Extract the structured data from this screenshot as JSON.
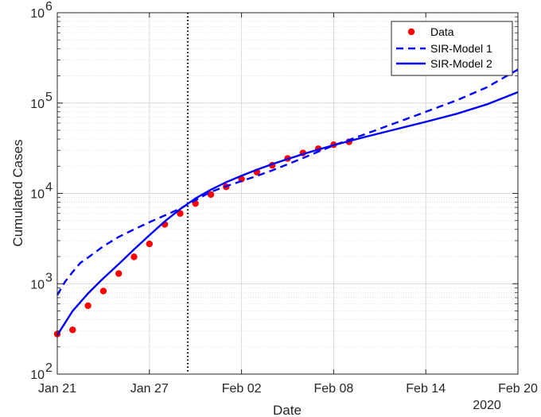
{
  "chart_data": {
    "type": "line",
    "xlabel": "Date",
    "ylabel": "Cumulated Cases",
    "x_range": [
      "2020-01-21",
      "2020-02-20"
    ],
    "ylim": [
      100,
      1000000
    ],
    "y_scale": "log",
    "grid": true,
    "legend_position": "top-right",
    "x_ticks": [
      {
        "date": "2020-01-21",
        "label": "Jan 21"
      },
      {
        "date": "2020-01-27",
        "label": "Jan 27"
      },
      {
        "date": "2020-02-02",
        "label": "Feb 02"
      },
      {
        "date": "2020-02-08",
        "label": "Feb 08"
      },
      {
        "date": "2020-02-14",
        "label": "Feb 14"
      },
      {
        "date": "2020-02-20",
        "label": "Feb 20"
      }
    ],
    "x_year_label": "2020",
    "y_ticks": [
      {
        "value": 100,
        "base": "10",
        "exp": "2"
      },
      {
        "value": 1000,
        "base": "10",
        "exp": "3"
      },
      {
        "value": 10000,
        "base": "10",
        "exp": "4"
      },
      {
        "value": 100000,
        "base": "10",
        "exp": "5"
      },
      {
        "value": 1000000,
        "base": "10",
        "exp": "6"
      }
    ],
    "vertical_line": {
      "date": "2020-01-29 12:00",
      "style": "dotted"
    },
    "series": [
      {
        "name": "Data",
        "style": "markers",
        "color": "#ff0000",
        "points": [
          [
            "2020-01-21",
            278
          ],
          [
            "2020-01-22",
            309
          ],
          [
            "2020-01-23",
            571
          ],
          [
            "2020-01-24",
            830
          ],
          [
            "2020-01-25",
            1297
          ],
          [
            "2020-01-26",
            1985
          ],
          [
            "2020-01-27",
            2761
          ],
          [
            "2020-01-28",
            4537
          ],
          [
            "2020-01-29",
            5997
          ],
          [
            "2020-01-30",
            7736
          ],
          [
            "2020-01-31",
            9720
          ],
          [
            "2020-02-01",
            11821
          ],
          [
            "2020-02-02",
            14411
          ],
          [
            "2020-02-03",
            17238
          ],
          [
            "2020-02-04",
            20471
          ],
          [
            "2020-02-05",
            24363
          ],
          [
            "2020-02-06",
            28060
          ],
          [
            "2020-02-07",
            31211
          ],
          [
            "2020-02-08",
            34598
          ],
          [
            "2020-02-09",
            37251
          ]
        ]
      },
      {
        "name": "SIR-Model 1",
        "style": "dashed",
        "color": "#0000ff",
        "points": [
          [
            "2020-01-21",
            750
          ],
          [
            "2020-01-21 12:00",
            1050
          ],
          [
            "2020-01-22",
            1350
          ],
          [
            "2020-01-22 12:00",
            1700
          ],
          [
            "2020-01-23",
            1950
          ],
          [
            "2020-01-24",
            2600
          ],
          [
            "2020-01-25",
            3300
          ],
          [
            "2020-01-26",
            4000
          ],
          [
            "2020-01-27",
            4800
          ],
          [
            "2020-01-28",
            5700
          ],
          [
            "2020-01-29",
            6800
          ],
          [
            "2020-01-30",
            8400
          ],
          [
            "2020-01-31",
            10400
          ],
          [
            "2020-02-01",
            12000
          ],
          [
            "2020-02-02",
            13700
          ],
          [
            "2020-02-03",
            15600
          ],
          [
            "2020-02-04",
            18000
          ],
          [
            "2020-02-05",
            21000
          ],
          [
            "2020-02-06",
            24600
          ],
          [
            "2020-02-07",
            29000
          ],
          [
            "2020-02-08",
            34000
          ],
          [
            "2020-02-10",
            45000
          ],
          [
            "2020-02-12",
            60000
          ],
          [
            "2020-02-14",
            80000
          ],
          [
            "2020-02-16",
            107000
          ],
          [
            "2020-02-18",
            150000
          ],
          [
            "2020-02-20",
            235000
          ]
        ]
      },
      {
        "name": "SIR-Model 2",
        "style": "solid",
        "color": "#0000ff",
        "points": [
          [
            "2020-01-21",
            270
          ],
          [
            "2020-01-22",
            500
          ],
          [
            "2020-01-23",
            780
          ],
          [
            "2020-01-24",
            1150
          ],
          [
            "2020-01-25",
            1650
          ],
          [
            "2020-01-26",
            2400
          ],
          [
            "2020-01-27",
            3450
          ],
          [
            "2020-01-28",
            4900
          ],
          [
            "2020-01-29",
            6700
          ],
          [
            "2020-01-30",
            8800
          ],
          [
            "2020-01-31",
            11000
          ],
          [
            "2020-02-01",
            13300
          ],
          [
            "2020-02-02",
            15700
          ],
          [
            "2020-02-03",
            18300
          ],
          [
            "2020-02-04",
            21100
          ],
          [
            "2020-02-05",
            24000
          ],
          [
            "2020-02-06",
            27200
          ],
          [
            "2020-02-07",
            30600
          ],
          [
            "2020-02-08",
            34200
          ],
          [
            "2020-02-10",
            42000
          ],
          [
            "2020-02-12",
            51000
          ],
          [
            "2020-02-14",
            62000
          ],
          [
            "2020-02-16",
            76000
          ],
          [
            "2020-02-18",
            97000
          ],
          [
            "2020-02-20",
            132000
          ]
        ]
      }
    ]
  }
}
